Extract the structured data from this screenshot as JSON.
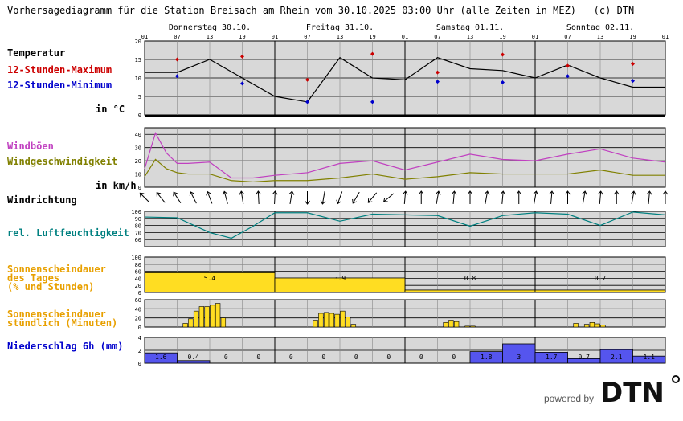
{
  "title": "Vorhersagediagramm für die Station Breisach am Rhein vom 30.10.2025 03:00 Uhr (alle Zeiten in MEZ)   (c) DTN",
  "days": [
    "Donnerstag 30.10.",
    "Freitag 31.10.",
    "Samstag 01.11.",
    "Sonntag 02.11."
  ],
  "hour_labels": [
    "01",
    "07",
    "13",
    "19",
    "01",
    "07",
    "13",
    "19",
    "01",
    "07",
    "13",
    "19",
    "01",
    "07",
    "13",
    "19",
    "01"
  ],
  "labels": {
    "temperature": "Temperatur",
    "tmax": "12-Stunden-Maximum",
    "tmin": "12-Stunden-Minimum",
    "temp_unit": "in °C",
    "gusts": "Windböen",
    "windspeed": "Windgeschwindigkeit",
    "wind_unit": "in km/h",
    "winddir": "Windrichtung",
    "humidity": "rel. Luftfeuchtigkeit",
    "sun_daily": "Sonnenscheindauer\ndes Tages\n(% und Stunden)",
    "sun_hourly": "Sonnenscheindauer\nstündlich (Minuten)",
    "precip": "Niederschlag 6h (mm)"
  },
  "colors": {
    "temperature": "#000000",
    "tmax": "#cc0000",
    "tmin": "#0000cc",
    "gusts": "#c040c0",
    "windspeed": "#808000",
    "humidity": "#008080",
    "sun": "#e8a000",
    "sun_fill": "#ffdd22",
    "precip_label": "#0000cc",
    "precip_fill": "#5555ee",
    "panel_bg": "#d8d8d8"
  },
  "brand": {
    "text": "powered by",
    "logo": "DTN"
  },
  "chart_data": [
    {
      "type": "line",
      "name": "temperature",
      "ylim": [
        0,
        20
      ],
      "yticks": [
        0,
        5,
        10,
        15,
        20
      ],
      "x_hours": [
        0,
        6,
        12,
        18,
        24,
        30,
        36,
        42,
        48,
        54,
        60,
        66,
        72,
        78,
        84,
        90,
        96
      ],
      "values": [
        11.5,
        11.5,
        15,
        10,
        5,
        3.5,
        15.5,
        10,
        9.5,
        15.5,
        12.5,
        12,
        10,
        13.5,
        10,
        7.5,
        7.5
      ],
      "markers": {
        "tmax": [
          [
            6,
            15
          ],
          [
            18,
            15.8
          ],
          [
            30,
            9.5
          ],
          [
            42,
            16.5
          ],
          [
            54,
            11.5
          ],
          [
            66,
            16.3
          ],
          [
            78,
            13.3
          ],
          [
            90,
            13.8
          ]
        ],
        "tmin": [
          [
            6,
            10.5
          ],
          [
            18,
            8.5
          ],
          [
            30,
            3.5
          ],
          [
            42,
            3.5
          ],
          [
            54,
            9
          ],
          [
            66,
            8.8
          ],
          [
            78,
            10.5
          ],
          [
            90,
            9.2
          ]
        ]
      }
    },
    {
      "type": "line",
      "name": "wind",
      "ylim": [
        0,
        45
      ],
      "yticks": [
        0,
        10,
        20,
        30,
        40
      ],
      "x_hours": [
        0,
        2,
        4,
        6,
        8,
        12,
        16,
        20,
        24,
        30,
        36,
        42,
        48,
        54,
        60,
        66,
        72,
        78,
        84,
        90,
        96
      ],
      "series": [
        {
          "name": "Windböen",
          "values": [
            14,
            41,
            26,
            18,
            18,
            19,
            7,
            7,
            9,
            11,
            18,
            20,
            13,
            19,
            25,
            21,
            20,
            25,
            29,
            22,
            19
          ]
        },
        {
          "name": "Windgeschwindigkeit",
          "values": [
            8,
            21,
            14,
            11,
            10,
            10,
            5,
            4,
            5,
            5,
            7,
            10,
            6,
            8,
            11,
            10,
            10,
            10,
            13,
            9,
            9
          ]
        }
      ]
    },
    {
      "type": "line",
      "name": "humidity",
      "ylim": [
        50,
        100
      ],
      "yticks": [
        60,
        70,
        80,
        90,
        100
      ],
      "x_hours": [
        0,
        6,
        12,
        16,
        20,
        24,
        30,
        36,
        42,
        48,
        54,
        60,
        66,
        72,
        78,
        84,
        90,
        96
      ],
      "values": [
        92,
        91,
        70,
        62,
        79,
        98,
        98,
        86,
        96,
        95,
        94,
        79,
        94,
        98,
        96,
        80,
        99,
        95
      ]
    },
    {
      "type": "bar",
      "name": "sun_daily",
      "ylim": [
        0,
        100
      ],
      "yticks": [
        0,
        20,
        40,
        60,
        80,
        100
      ],
      "categories": [
        "Donnerstag 30.10.",
        "Freitag 31.10.",
        "Samstag 01.11.",
        "Sonntag 02.11."
      ],
      "percent": [
        56,
        41,
        7,
        7
      ],
      "hours_text": [
        "5.4",
        "3.9",
        "0.8",
        "0.7"
      ]
    },
    {
      "type": "bar",
      "name": "sun_hourly",
      "ylim": [
        0,
        60
      ],
      "yticks": [
        0,
        20,
        40,
        60
      ],
      "bars": [
        [
          7,
          8
        ],
        [
          8,
          18
        ],
        [
          9,
          35
        ],
        [
          10,
          45
        ],
        [
          11,
          45
        ],
        [
          12,
          48
        ],
        [
          13,
          52
        ],
        [
          14,
          20
        ],
        [
          31,
          15
        ],
        [
          32,
          30
        ],
        [
          33,
          32
        ],
        [
          34,
          30
        ],
        [
          35,
          28
        ],
        [
          36,
          35
        ],
        [
          37,
          22
        ],
        [
          38,
          6
        ],
        [
          55,
          10
        ],
        [
          56,
          15
        ],
        [
          57,
          12
        ],
        [
          59,
          2
        ],
        [
          60,
          2
        ],
        [
          79,
          8
        ],
        [
          81,
          6
        ],
        [
          82,
          10
        ],
        [
          83,
          7
        ],
        [
          84,
          4
        ]
      ]
    },
    {
      "type": "bar",
      "name": "precip",
      "ylim": [
        0,
        4
      ],
      "yticks": [
        0,
        2,
        4
      ],
      "values": [
        1.6,
        0.4,
        0,
        0,
        0,
        0,
        0,
        0,
        0,
        0,
        1.8,
        3,
        1.7,
        0.7,
        2.1,
        1.1
      ],
      "value_labels": [
        "1.6",
        "0.4",
        "0",
        "0",
        "0",
        "0",
        "0",
        "0",
        "0",
        "0",
        "1.8",
        "3",
        "1.7",
        "0.7",
        "2.1",
        "1.1"
      ]
    }
  ]
}
